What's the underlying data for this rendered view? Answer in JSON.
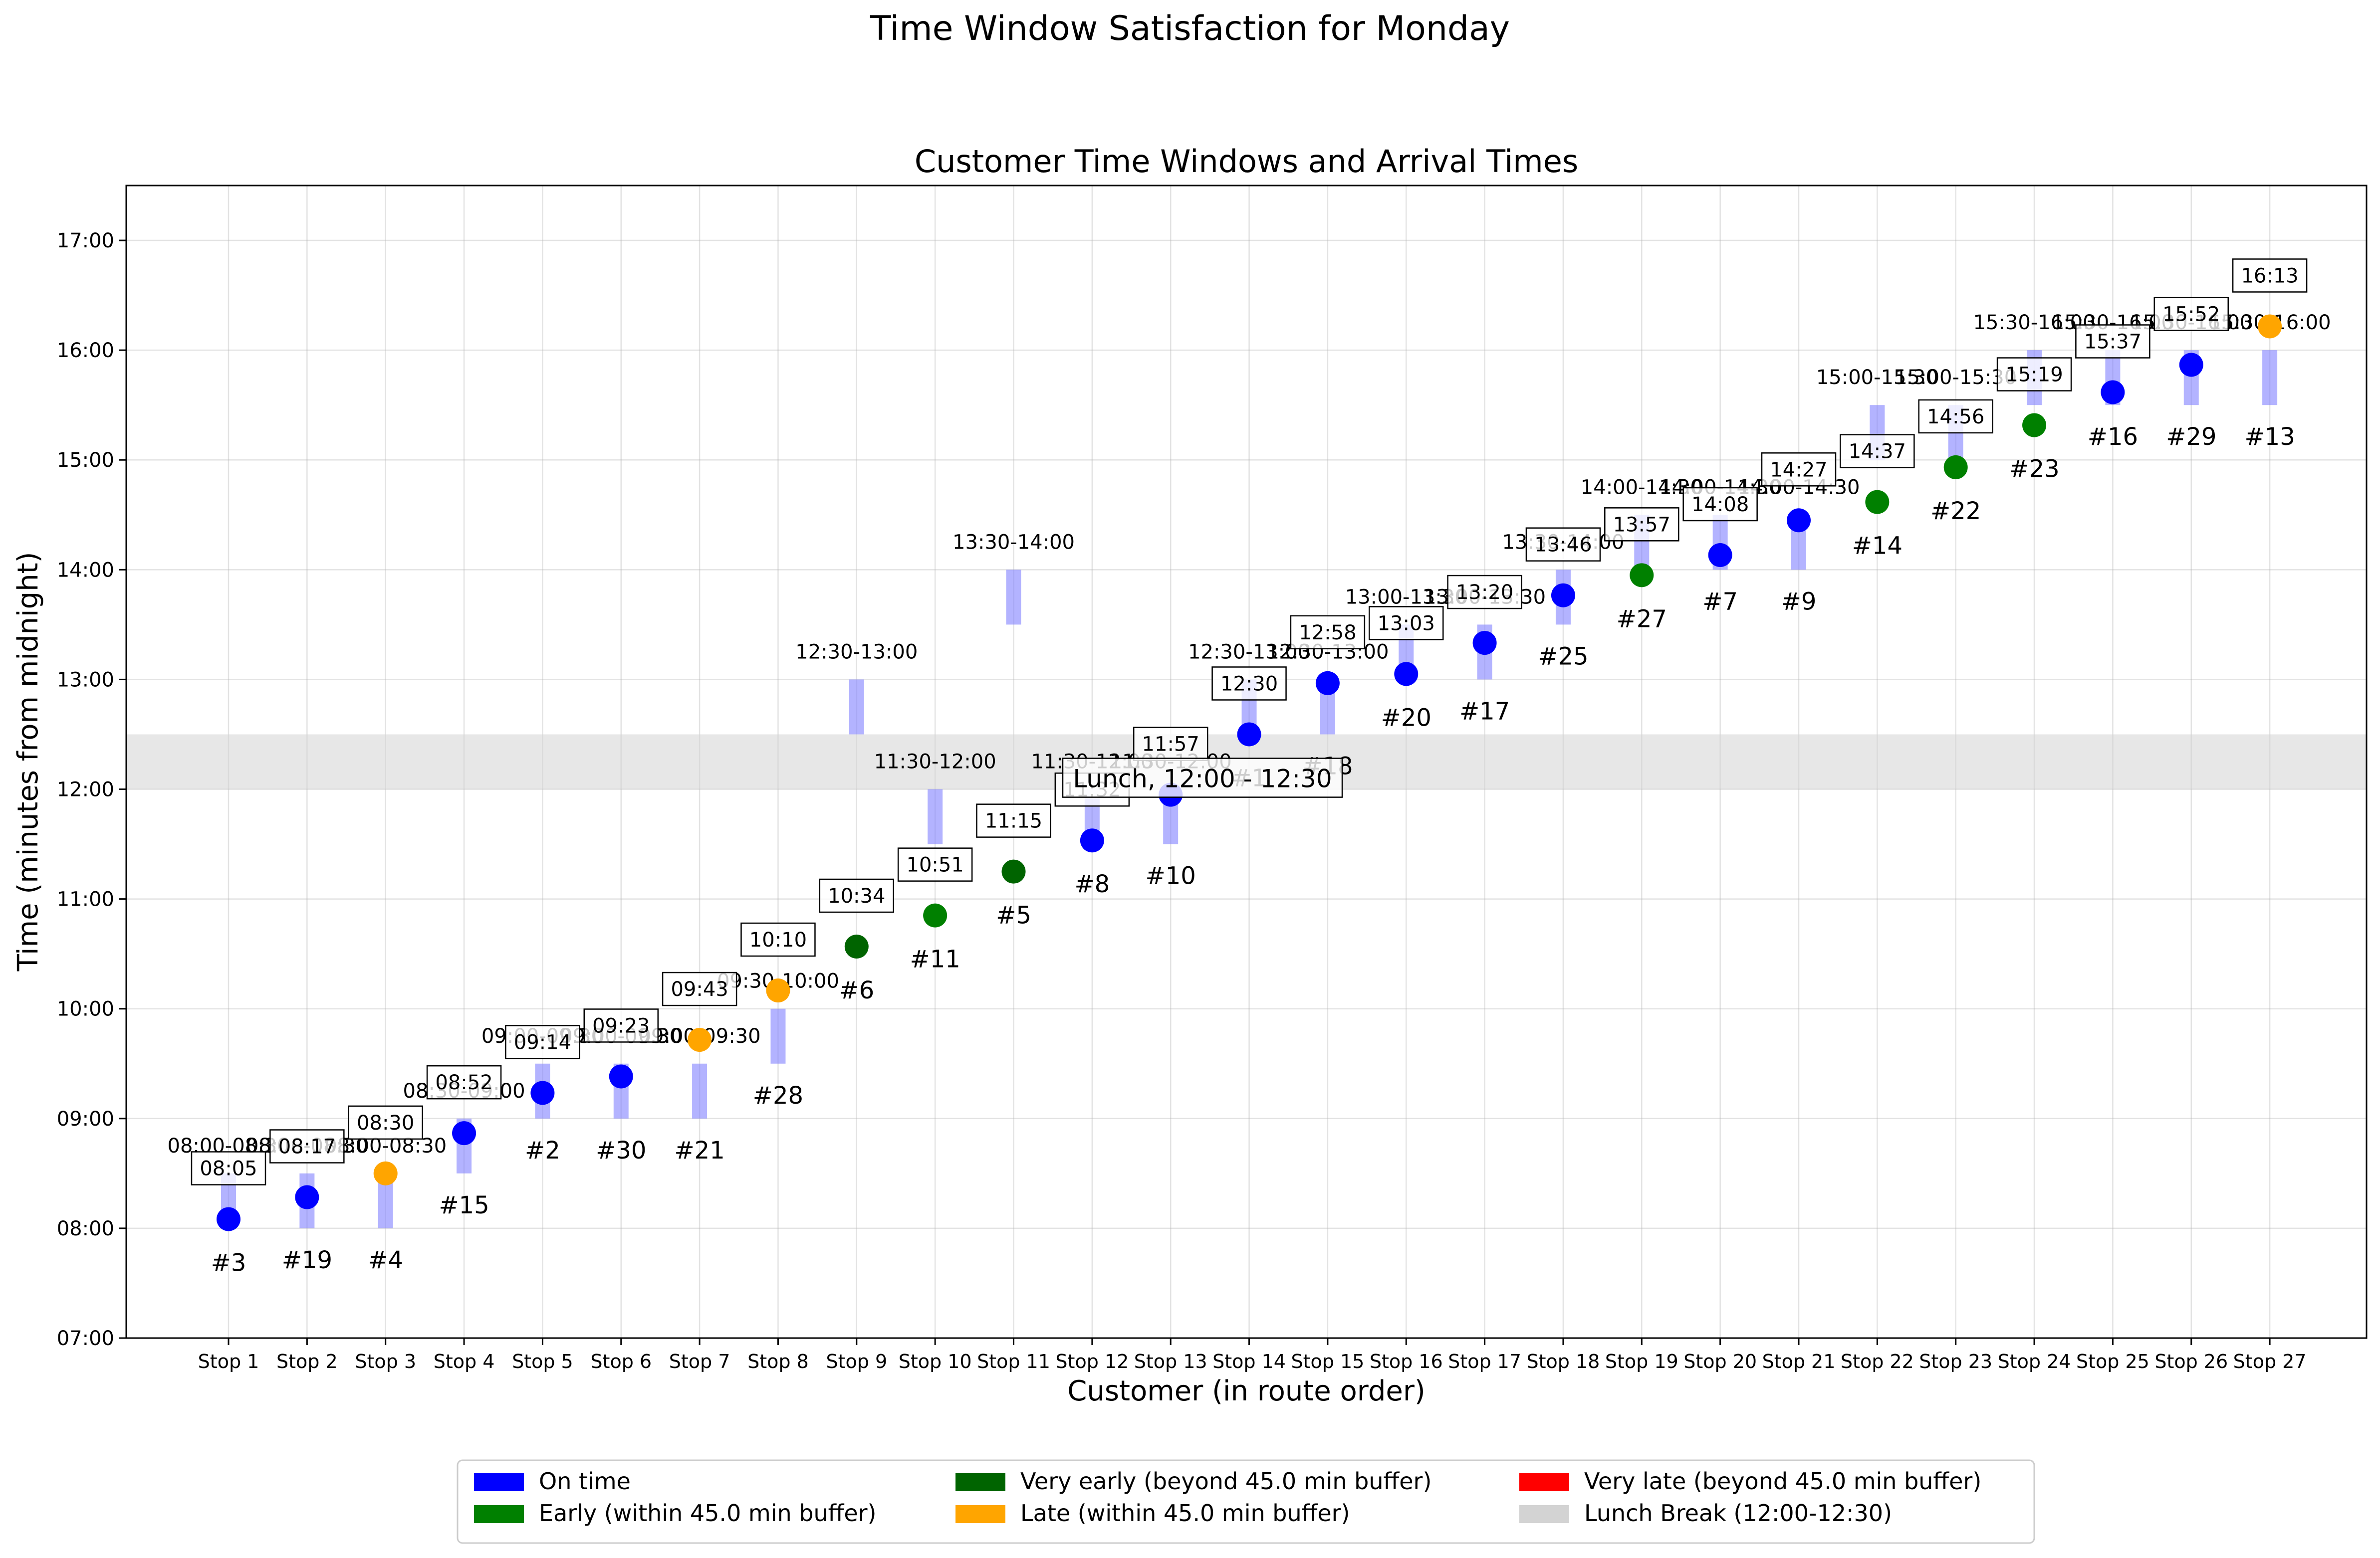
{
  "suptitle": "Time Window Satisfaction for Monday",
  "chart_data": {
    "type": "scatter",
    "title": "Customer Time Windows and Arrival Times",
    "xlabel": "Customer (in route order)",
    "ylabel": "Time (minutes from midnight)",
    "ylim": [
      "07:00",
      "17:30"
    ],
    "yticks": [
      "07:00",
      "08:00",
      "09:00",
      "10:00",
      "11:00",
      "12:00",
      "13:00",
      "14:00",
      "15:00",
      "16:00",
      "17:00"
    ],
    "grid": true,
    "lunch_break": {
      "start": "12:00",
      "end": "12:30",
      "label": "Lunch, 12:00 - 12:30"
    },
    "colors": {
      "on_time": "#0000ff",
      "early": "#008000",
      "very_early": "#006400",
      "late": "#ffa500",
      "very_late": "#ff0000",
      "lunch": "#d3d3d3",
      "window": "#8080ff"
    },
    "stops": [
      {
        "stop": "Stop 1",
        "customer": "#3",
        "window": "08:00-08:30",
        "arrival": "08:05",
        "status": "on_time"
      },
      {
        "stop": "Stop 2",
        "customer": "#19",
        "window": "08:00-08:30",
        "arrival": "08:17",
        "status": "on_time"
      },
      {
        "stop": "Stop 3",
        "customer": "#4",
        "window": "08:00-08:30",
        "arrival": "08:30",
        "status": "late"
      },
      {
        "stop": "Stop 4",
        "customer": "#15",
        "window": "08:30-09:00",
        "arrival": "08:52",
        "status": "on_time"
      },
      {
        "stop": "Stop 5",
        "customer": "#2",
        "window": "09:00-09:30",
        "arrival": "09:14",
        "status": "on_time"
      },
      {
        "stop": "Stop 6",
        "customer": "#30",
        "window": "09:00-09:30",
        "arrival": "09:23",
        "status": "on_time"
      },
      {
        "stop": "Stop 7",
        "customer": "#21",
        "window": "09:00-09:30",
        "arrival": "09:43",
        "status": "late"
      },
      {
        "stop": "Stop 8",
        "customer": "#28",
        "window": "09:30-10:00",
        "arrival": "10:10",
        "status": "late"
      },
      {
        "stop": "Stop 9",
        "customer": "#6",
        "window": "12:30-13:00",
        "arrival": "10:34",
        "status": "very_early"
      },
      {
        "stop": "Stop 10",
        "customer": "#11",
        "window": "11:30-12:00",
        "arrival": "10:51",
        "status": "early"
      },
      {
        "stop": "Stop 11",
        "customer": "#5",
        "window": "13:30-14:00",
        "arrival": "11:15",
        "status": "very_early"
      },
      {
        "stop": "Stop 12",
        "customer": "#8",
        "window": "11:30-12:00",
        "arrival": "11:32",
        "status": "on_time"
      },
      {
        "stop": "Stop 13",
        "customer": "#10",
        "window": "11:30-12:00",
        "arrival": "11:57",
        "status": "on_time"
      },
      {
        "stop": "Stop 14",
        "customer": "#1",
        "window": "12:30-13:00",
        "arrival": "12:30",
        "status": "on_time"
      },
      {
        "stop": "Stop 15",
        "customer": "#18",
        "window": "12:30-13:00",
        "arrival": "12:58",
        "status": "on_time"
      },
      {
        "stop": "Stop 16",
        "customer": "#20",
        "window": "13:00-13:30",
        "arrival": "13:03",
        "status": "on_time"
      },
      {
        "stop": "Stop 17",
        "customer": "#17",
        "window": "13:00-13:30",
        "arrival": "13:20",
        "status": "on_time"
      },
      {
        "stop": "Stop 18",
        "customer": "#25",
        "window": "13:30-14:00",
        "arrival": "13:46",
        "status": "on_time"
      },
      {
        "stop": "Stop 19",
        "customer": "#27",
        "window": "14:00-14:30",
        "arrival": "13:57",
        "status": "early"
      },
      {
        "stop": "Stop 20",
        "customer": "#7",
        "window": "14:00-14:30",
        "arrival": "14:08",
        "status": "on_time"
      },
      {
        "stop": "Stop 21",
        "customer": "#9",
        "window": "14:00-14:30",
        "arrival": "14:27",
        "status": "on_time"
      },
      {
        "stop": "Stop 22",
        "customer": "#14",
        "window": "15:00-15:30",
        "arrival": "14:37",
        "status": "early"
      },
      {
        "stop": "Stop 23",
        "customer": "#22",
        "window": "15:00-15:30",
        "arrival": "14:56",
        "status": "early"
      },
      {
        "stop": "Stop 24",
        "customer": "#23",
        "window": "15:30-16:00",
        "arrival": "15:19",
        "status": "early"
      },
      {
        "stop": "Stop 25",
        "customer": "#16",
        "window": "15:30-16:00",
        "arrival": "15:37",
        "status": "on_time"
      },
      {
        "stop": "Stop 26",
        "customer": "#29",
        "window": "15:30-16:00",
        "arrival": "15:52",
        "status": "on_time"
      },
      {
        "stop": "Stop 27",
        "customer": "#13",
        "window": "15:30-16:00",
        "arrival": "16:13",
        "status": "late"
      }
    ],
    "legend": {
      "placement": "bottom-center",
      "entries": [
        {
          "key": "on_time",
          "label": "On time"
        },
        {
          "key": "early",
          "label": "Early (within 45.0 min buffer)"
        },
        {
          "key": "very_early",
          "label": "Very early (beyond 45.0 min buffer)"
        },
        {
          "key": "late",
          "label": "Late (within 45.0 min buffer)"
        },
        {
          "key": "very_late",
          "label": "Very late (beyond 45.0 min buffer)"
        },
        {
          "key": "lunch",
          "label": "Lunch Break (12:00-12:30)"
        }
      ]
    }
  }
}
